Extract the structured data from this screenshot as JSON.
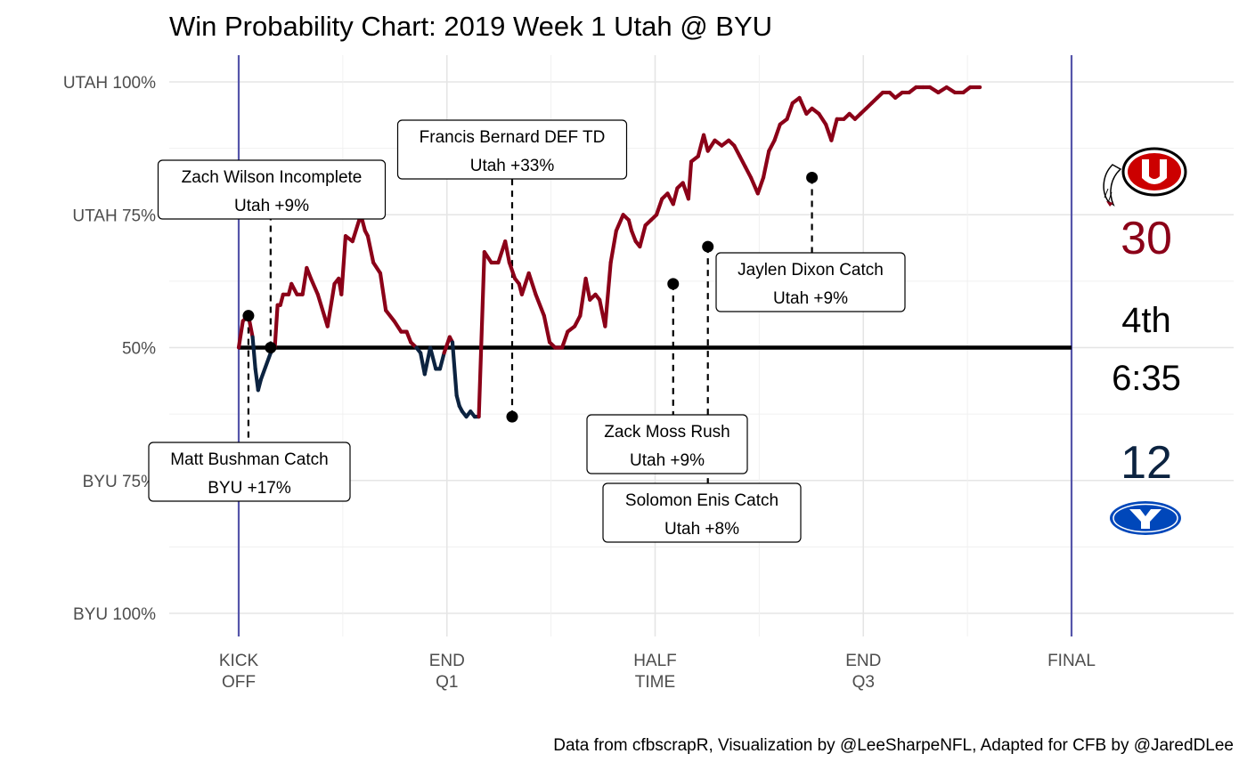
{
  "chart_data": {
    "type": "line",
    "title": "Win Probability Chart: 2019 Week 1 Utah @ BYU",
    "caption": "Data from cfbscrapR, Visualization by @LeeSharpeNFL, Adapted for CFB by @JaredDLee",
    "y_ticks": [
      {
        "label": "UTAH 100%",
        "value": 100
      },
      {
        "label": "UTAH 75%",
        "value": 75
      },
      {
        "label": "50%",
        "value": 50
      },
      {
        "label": "BYU 75%",
        "value": 25
      },
      {
        "label": "BYU 100%",
        "value": 0
      }
    ],
    "x_ticks": [
      {
        "lines": [
          "KICK",
          "OFF"
        ],
        "value": 0
      },
      {
        "lines": [
          "END",
          "Q1"
        ],
        "value": 15
      },
      {
        "lines": [
          "HALF",
          "TIME"
        ],
        "value": 30
      },
      {
        "lines": [
          "END",
          "Q3"
        ],
        "value": 45
      },
      {
        "lines": [
          "FINAL"
        ],
        "value": 60
      }
    ],
    "ylim": [
      0,
      100
    ],
    "xlim": [
      0,
      60
    ],
    "home_line_color": "#8B0018",
    "away_line_color": "#0C2340",
    "series": {
      "x": [
        0,
        0.3,
        0.7,
        1.0,
        1.2,
        1.4,
        1.6,
        2.3,
        2.6,
        2.8,
        3.0,
        3.2,
        3.6,
        3.8,
        4.2,
        4.6,
        4.9,
        5.2,
        5.7,
        6.4,
        6.9,
        7.2,
        7.4,
        7.7,
        8.2,
        8.8,
        9.1,
        9.3,
        9.7,
        10.2,
        10.6,
        11.2,
        11.7,
        12.1,
        12.4,
        12.8,
        13.1,
        13.4,
        13.8,
        14.2,
        14.5,
        14.8,
        15.2,
        15.4,
        15.7,
        15.9,
        16.1,
        16.4,
        16.7,
        17.0,
        17.3,
        17.7,
        18.2,
        18.7,
        19.2,
        19.5,
        19.9,
        20.2,
        20.4,
        20.9,
        21.4,
        22.0,
        22.4,
        22.8,
        23.3,
        23.7,
        24.2,
        24.6,
        25.0,
        25.3,
        25.7,
        26.0,
        26.4,
        26.8,
        27.2,
        27.7,
        28.1,
        28.3,
        28.6,
        28.9,
        29.3,
        29.7,
        30.1,
        30.5,
        30.9,
        31.3,
        31.6,
        32.0,
        32.4,
        32.6,
        33.1,
        33.5,
        33.8,
        34.3,
        34.8,
        35.3,
        35.7,
        36.1,
        36.5,
        36.9,
        37.4,
        37.8,
        38.2,
        38.6,
        39.0,
        39.5,
        39.9,
        40.4,
        40.9,
        41.3,
        41.8,
        42.3,
        42.7,
        43.1,
        43.6,
        44.0,
        44.4,
        44.8,
        45.2,
        45.6,
        46.0,
        46.4,
        46.9,
        47.3,
        47.8,
        48.3,
        48.8,
        49.3,
        49.8,
        50.4,
        51.0,
        51.6,
        52.2,
        52.7,
        53.4
      ],
      "y": [
        50,
        55,
        56,
        52,
        46,
        42,
        44,
        49,
        50,
        58,
        58,
        60,
        60,
        62,
        60,
        60,
        65,
        63,
        60,
        54,
        62,
        63,
        60,
        71,
        70,
        75,
        72,
        71,
        66,
        64,
        57,
        55,
        53,
        53,
        51,
        50,
        49,
        45,
        50,
        46,
        46,
        49,
        52,
        51,
        41,
        39,
        38,
        37,
        38,
        37,
        37,
        68,
        66,
        66,
        70,
        66,
        63,
        62,
        60,
        64,
        60,
        56,
        51,
        50,
        50,
        53,
        54,
        56,
        63,
        59,
        60,
        59,
        54,
        66,
        72,
        75,
        74,
        72,
        70,
        69,
        73,
        74,
        75,
        78,
        79,
        77,
        80,
        81,
        78,
        85,
        86,
        90,
        87,
        89,
        88,
        89,
        88,
        86,
        84,
        82,
        79,
        82,
        87,
        89,
        92,
        93,
        96,
        97,
        94,
        95,
        94,
        92,
        89,
        93,
        93,
        94,
        93,
        94,
        95,
        96,
        97,
        98,
        98,
        97,
        98,
        98,
        99,
        99,
        99,
        98,
        99,
        98,
        98,
        99,
        99
      ]
    },
    "annotations": [
      {
        "line1": "Zach Wilson  Incomplete",
        "line2": "Utah +9%",
        "x": 2.3,
        "y": 50
      },
      {
        "line1": "Matt Bushman  Catch",
        "line2": "BYU +17%",
        "x": 0.7,
        "y": 56
      },
      {
        "line1": "Francis Bernard DEF TD",
        "line2": "Utah +33%",
        "x": 19.7,
        "y": 37
      },
      {
        "line1": "Zack Moss Rush",
        "line2": "Utah +9%",
        "x": 31.3,
        "y": 62
      },
      {
        "line1": "Solomon Enis  Catch",
        "line2": "Utah +8%",
        "x": 33.8,
        "y": 69
      },
      {
        "line1": "Jaylen Dixon  Catch",
        "line2": "Utah +9%",
        "x": 41.3,
        "y": 82
      }
    ]
  },
  "scoreboard": {
    "home_score": "30",
    "quarter": "4th",
    "clock": "6:35",
    "away_score": "12",
    "home_color": "#8B0018",
    "away_color": "#0C2340",
    "home_logo_icon": "utah-utes-logo-icon",
    "away_logo_icon": "byu-cougars-logo-icon"
  }
}
